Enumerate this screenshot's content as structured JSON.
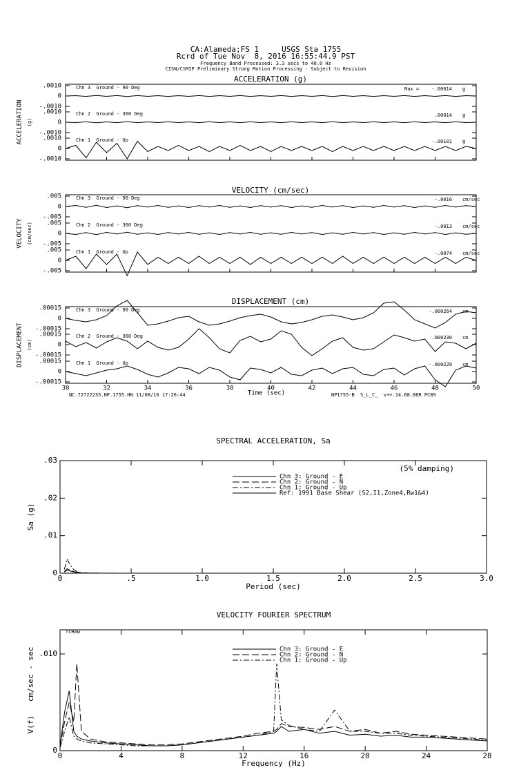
{
  "header": [
    "CA:Alameda;FS 1     USGS Sta 1755",
    "Rcrd of Tue Nov  8, 2016 16:55:44.9 PST",
    "Frequency Band Processed: 3.3 secs to 40.0 Hz",
    "CISN/CSMIP Preliminary Strong Motion Processing - Subject to Revision"
  ],
  "chart_data": [
    {
      "type": "trace",
      "title": "ACCELERATION (g)",
      "ylabel": "ACCELERATION",
      "yunit": "(g)",
      "max_prefix": "Max =",
      "unit": "g",
      "xlim": [
        30,
        50
      ],
      "xticks": [
        30,
        32,
        34,
        36,
        38,
        40,
        42,
        44,
        46,
        48,
        50
      ],
      "ylim": [
        -0.001,
        0.001
      ],
      "yticks": [
        {
          "value": 0.001,
          "label": ".0010"
        },
        0,
        {
          "value": -0.001,
          "label": "-.0010"
        }
      ],
      "x": [
        30,
        30.5,
        31,
        31.5,
        32,
        32.5,
        33,
        33.5,
        34,
        34.5,
        35,
        35.5,
        36,
        36.5,
        37,
        37.5,
        38,
        38.5,
        39,
        39.5,
        40,
        40.5,
        41,
        41.5,
        42,
        42.5,
        43,
        43.5,
        44,
        44.5,
        45,
        45.5,
        46,
        46.5,
        47,
        47.5,
        48,
        48.5,
        49,
        49.5,
        50
      ],
      "channels": [
        {
          "name": "Chn 3  Ground - 90 Deg",
          "peak": "-.00014",
          "values": [
            0,
            3e-05,
            -4e-05,
            5e-05,
            -3e-05,
            4e-05,
            -5e-05,
            4e-05,
            -3e-05,
            3e-05,
            -4e-05,
            3e-05,
            -3e-05,
            4e-05,
            -4e-05,
            3e-05,
            -3e-05,
            4e-05,
            -4e-05,
            3e-05,
            -3e-05,
            4e-05,
            -4e-05,
            3e-05,
            -3e-05,
            4e-05,
            -5e-05,
            4e-05,
            -3e-05,
            3e-05,
            -4e-05,
            3e-05,
            -3e-05,
            4e-05,
            -4e-05,
            3e-05,
            -3e-05,
            4e-05,
            -4e-05,
            3e-05,
            0
          ]
        },
        {
          "name": "Chn 2  Ground - 360 Deg",
          "peak": ".00014",
          "values": [
            0,
            -3e-05,
            4e-05,
            -5e-05,
            3e-05,
            -4e-05,
            5e-05,
            -4e-05,
            3e-05,
            -3e-05,
            4e-05,
            -3e-05,
            3e-05,
            -4e-05,
            4e-05,
            -3e-05,
            3e-05,
            -4e-05,
            4e-05,
            -3e-05,
            3e-05,
            -4e-05,
            4e-05,
            -3e-05,
            3e-05,
            -4e-05,
            5e-05,
            -4e-05,
            3e-05,
            -3e-05,
            4e-05,
            -3e-05,
            3e-05,
            -4e-05,
            4e-05,
            -3e-05,
            3e-05,
            -4e-05,
            4e-05,
            -3e-05,
            0
          ]
        },
        {
          "name": "Chn 1  Ground - Up",
          "peak": "-.00101",
          "values": [
            0,
            0.0003,
            -0.0009,
            0.0006,
            -0.0004,
            0.0005,
            -0.001,
            0.0007,
            -0.0003,
            0.0002,
            -0.0002,
            0.0003,
            -0.0002,
            0.0002,
            -0.0003,
            0.0002,
            -0.0002,
            0.0003,
            -0.0002,
            0.0002,
            -0.0003,
            0.0002,
            -0.0002,
            0.0002,
            -0.0002,
            0.0002,
            -0.0003,
            0.0002,
            -0.0002,
            0.0002,
            -0.0002,
            0.0002,
            -0.0002,
            0.0002,
            -0.0002,
            0.0002,
            -0.0002,
            0.0002,
            -0.0002,
            0.0002,
            0
          ]
        }
      ]
    },
    {
      "type": "trace",
      "title": "VELOCITY (cm/sec)",
      "ylabel": "VELOCITY",
      "yunit": "(cm/sec)",
      "unit": "cm/sec",
      "xlim": [
        30,
        50
      ],
      "xticks": [
        30,
        32,
        34,
        36,
        38,
        40,
        42,
        44,
        46,
        48,
        50
      ],
      "ylim": [
        -0.005,
        0.005
      ],
      "yticks": [
        {
          "value": 0.005,
          "label": ".005"
        },
        0,
        {
          "value": -0.005,
          "label": "-.005"
        }
      ],
      "x": [
        30,
        30.5,
        31,
        31.5,
        32,
        32.5,
        33,
        33.5,
        34,
        34.5,
        35,
        35.5,
        36,
        36.5,
        37,
        37.5,
        38,
        38.5,
        39,
        39.5,
        40,
        40.5,
        41,
        41.5,
        42,
        42.5,
        43,
        43.5,
        44,
        44.5,
        45,
        45.5,
        46,
        46.5,
        47,
        47.5,
        48,
        48.5,
        49,
        49.5,
        50
      ],
      "channels": [
        {
          "name": "Chn 3  Ground - 90 Deg",
          "peak": "-.0016",
          "values": [
            0,
            0.0005,
            -0.0004,
            0.0006,
            -0.0005,
            0.0003,
            -0.0006,
            0.0004,
            -0.0003,
            0.0005,
            -0.0004,
            0.0003,
            -0.0005,
            0.0004,
            -0.0003,
            0.0005,
            -0.0004,
            0.0003,
            -0.0005,
            0.0004,
            -0.0003,
            0.0004,
            -0.0005,
            0.0003,
            -0.0004,
            0.0005,
            -0.0003,
            0.0004,
            -0.0005,
            0.0003,
            -0.0004,
            0.0005,
            -0.0003,
            0.0004,
            -0.0005,
            0.0003,
            -0.0004,
            0.0005,
            -0.0003,
            0.0004,
            0
          ]
        },
        {
          "name": "Chn 2  Ground - 360 Deg",
          "peak": "-.0013",
          "values": [
            0,
            -0.0005,
            0.0004,
            -0.0006,
            0.0005,
            -0.0003,
            0.0006,
            -0.0004,
            0.0003,
            -0.0005,
            0.0004,
            -0.0003,
            0.0005,
            -0.0004,
            0.0003,
            -0.0005,
            0.0004,
            -0.0003,
            0.0005,
            -0.0004,
            0.0003,
            -0.0004,
            0.0005,
            -0.0003,
            0.0004,
            -0.0005,
            0.0003,
            -0.0004,
            0.0005,
            -0.0003,
            0.0004,
            -0.0005,
            0.0003,
            -0.0004,
            0.0005,
            -0.0003,
            0.0004,
            -0.0005,
            0.0003,
            -0.0004,
            0
          ]
        },
        {
          "name": "Chn 1  Ground - Up",
          "peak": "-.0074",
          "values": [
            0,
            0.002,
            -0.004,
            0.003,
            -0.002,
            0.003,
            -0.0074,
            0.004,
            -0.002,
            0.0015,
            -0.0015,
            0.0015,
            -0.0015,
            0.002,
            -0.0015,
            0.0015,
            -0.0015,
            0.0015,
            -0.002,
            0.0015,
            -0.0015,
            0.0015,
            -0.0015,
            0.0015,
            -0.0015,
            0.0015,
            -0.0015,
            0.002,
            -0.0015,
            0.0015,
            -0.0015,
            0.0015,
            -0.0015,
            0.0015,
            -0.0015,
            0.0015,
            -0.0015,
            0.0015,
            -0.0015,
            0.0015,
            0
          ]
        }
      ]
    },
    {
      "type": "trace",
      "title": "DISPLACEMENT (cm)",
      "ylabel": "DISPLACEMENT",
      "yunit": "(cm)",
      "unit": "cm",
      "xlabel": "Time (sec)",
      "footer": [
        "NC.72722235.NP.1755.HN 11/08/16 17:26:44",
        "NP1755-B  S_L_C_  v++.14.68.86R PC89"
      ],
      "xlim": [
        30,
        50
      ],
      "xticks": [
        30,
        32,
        34,
        36,
        38,
        40,
        42,
        44,
        46,
        48,
        50
      ],
      "ylim": [
        -0.00015,
        0.00015
      ],
      "yticks": [
        {
          "value": 0.00015,
          "label": ".00015"
        },
        0,
        {
          "value": -0.00015,
          "label": "-.00015"
        }
      ],
      "x": [
        30,
        30.5,
        31,
        31.5,
        32,
        32.5,
        33,
        33.5,
        34,
        34.5,
        35,
        35.5,
        36,
        36.5,
        37,
        37.5,
        38,
        38.5,
        39,
        39.5,
        40,
        40.5,
        41,
        41.5,
        42,
        42.5,
        43,
        43.5,
        44,
        44.5,
        45,
        45.5,
        46,
        46.5,
        47,
        47.5,
        48,
        48.5,
        49,
        49.5,
        50
      ],
      "channels": [
        {
          "name": "Chn 3  Ground - 90 Deg",
          "peak": "-.000264",
          "values": [
            0,
            -3e-05,
            -5e-05,
            -2e-05,
            4e-05,
            0.00018,
            0.00026,
            8e-05,
            -0.0001,
            -8e-05,
            -4e-05,
            1e-05,
            3e-05,
            -5e-05,
            -0.0001,
            -8e-05,
            -4e-05,
            1e-05,
            4e-05,
            6e-05,
            2e-05,
            -5e-05,
            -8e-05,
            -6e-05,
            -2e-05,
            3e-05,
            5e-05,
            2e-05,
            -2e-05,
            1e-05,
            8e-05,
            0.00022,
            0.00024,
            0.00012,
            -2e-05,
            -8e-05,
            -0.00014,
            -6e-05,
            6e-05,
            0.0001,
            8e-05
          ]
        },
        {
          "name": "Chn 2  Ground - 360 Deg",
          "peak": ".000230",
          "values": [
            5e-05,
            -3e-05,
            3e-05,
            -5e-05,
            4e-05,
            0.0001,
            5e-05,
            -6e-05,
            5e-05,
            -4e-05,
            -8e-05,
            -4e-05,
            8e-05,
            0.00023,
            0.0001,
            -6e-05,
            -0.00012,
            6e-05,
            0.00012,
            4e-05,
            8e-05,
            0.0002,
            0.00015,
            -4e-05,
            -0.00016,
            -6e-05,
            5e-05,
            0.0001,
            -4e-05,
            -8e-05,
            -6e-05,
            4e-05,
            0.00014,
            0.0001,
            5e-05,
            8e-05,
            -0.0001,
            4e-05,
            2e-05,
            -6e-05,
            2e-05
          ]
        },
        {
          "name": "Chn 1  Ground - Up",
          "peak": "-.000229",
          "values": [
            0,
            -3e-05,
            -6e-05,
            -2e-05,
            2e-05,
            4e-05,
            8e-05,
            3e-05,
            -4e-05,
            -8e-05,
            -2e-05,
            6e-05,
            4e-05,
            -3e-05,
            6e-05,
            2e-05,
            -8e-05,
            -0.00012,
            5e-05,
            3e-05,
            -2e-05,
            6e-05,
            -4e-05,
            -6e-05,
            2e-05,
            5e-05,
            -3e-05,
            4e-05,
            6e-05,
            -4e-05,
            -6e-05,
            3e-05,
            5e-05,
            -5e-05,
            4e-05,
            8e-05,
            -0.00012,
            -0.00022,
            2e-05,
            8e-05,
            5e-05
          ]
        }
      ]
    },
    {
      "type": "line",
      "title": "SPECTRAL ACCELERATION, Sa",
      "xlabel": "Period (sec)",
      "ylabel": "Sa (g)",
      "annotation": "(5% damping)",
      "xlim": [
        0,
        3
      ],
      "xticks": [
        0,
        {
          "value": 0.5,
          "label": ".5"
        },
        {
          "value": 1,
          "label": "1.0"
        },
        {
          "value": 1.5,
          "label": "1.5"
        },
        {
          "value": 2,
          "label": "2.0"
        },
        {
          "value": 2.5,
          "label": "2.5"
        },
        {
          "value": 3,
          "label": "3.0"
        }
      ],
      "ylim": [
        0,
        0.03
      ],
      "yticks": [
        0,
        {
          "value": 0.01,
          "label": ".01"
        },
        {
          "value": 0.02,
          "label": ".02"
        },
        {
          "value": 0.03,
          "label": ".03"
        }
      ],
      "x": [
        0.03,
        0.05,
        0.07,
        0.1,
        0.13,
        0.16,
        0.2,
        0.3,
        0.5
      ],
      "series": [
        {
          "name": "Chn 3: Ground - E",
          "color": "#000000",
          "values": [
            0.0003,
            0.0008,
            0.0006,
            0.0003,
            0.0001,
            5e-05,
            3e-05,
            1e-05,
            0
          ]
        },
        {
          "name": "Chn 2: Ground - N",
          "color": "#000000",
          "dash": "10,4",
          "values": [
            0.0004,
            0.0012,
            0.0008,
            0.0004,
            0.0002,
            8e-05,
            4e-05,
            1e-05,
            0
          ]
        },
        {
          "name": "Chn 1: Ground - Up",
          "color": "#000000",
          "dash": "8,3,2,3",
          "values": [
            0.001,
            0.0038,
            0.0022,
            0.0008,
            0.0003,
            0.0001,
            5e-05,
            2e-05,
            0
          ]
        },
        {
          "name": "Ref: 1991 Base Shear (S2,I1,Zone4,Rw1&4)",
          "color": "#000000",
          "values": [
            null,
            null,
            null,
            null,
            null,
            null,
            null,
            null,
            null
          ]
        }
      ]
    },
    {
      "type": "line",
      "title": "VELOCITY FOURIER SPECTRUM",
      "xlabel": "Frequency (Hz)",
      "ylabel": "V(f)   cm/sec - sec",
      "annotation": "fcHaw",
      "xlim": [
        0,
        28
      ],
      "xticks": [
        0,
        4,
        8,
        12,
        16,
        20,
        24,
        28
      ],
      "ylim": [
        0,
        0.0125
      ],
      "yticks": [
        0,
        {
          "value": 0.01,
          "label": ".010"
        }
      ],
      "x": [
        0,
        0.3,
        0.6,
        0.9,
        1.1,
        1.4,
        2,
        3,
        4,
        5,
        6,
        7,
        8,
        9,
        10,
        11,
        12,
        13,
        14,
        14.2,
        14.5,
        15,
        16,
        17,
        18,
        19,
        20,
        21,
        22,
        23,
        24,
        25,
        26,
        27,
        28
      ],
      "series": [
        {
          "name": "Chn 3: Ground - E",
          "color": "#000000",
          "values": [
            0.0005,
            0.004,
            0.0062,
            0.002,
            0.0015,
            0.0012,
            0.001,
            0.0008,
            0.0007,
            0.0006,
            0.0005,
            0.0005,
            0.0006,
            0.0008,
            0.001,
            0.0012,
            0.0014,
            0.0016,
            0.0018,
            0.002,
            0.0025,
            0.002,
            0.0022,
            0.0018,
            0.002,
            0.0016,
            0.0017,
            0.0015,
            0.0016,
            0.0014,
            0.0014,
            0.0013,
            0.0012,
            0.0011,
            0.001
          ]
        },
        {
          "name": "Chn 2: Ground - N",
          "color": "#000000",
          "dash": "10,4",
          "values": [
            0.0004,
            0.003,
            0.005,
            0.003,
            0.009,
            0.002,
            0.0012,
            0.0009,
            0.0008,
            0.0007,
            0.0006,
            0.0006,
            0.0007,
            0.0009,
            0.0011,
            0.0013,
            0.0015,
            0.0018,
            0.002,
            0.0022,
            0.0028,
            0.0025,
            0.0024,
            0.0022,
            0.0025,
            0.002,
            0.0022,
            0.0018,
            0.002,
            0.0017,
            0.0016,
            0.0015,
            0.0014,
            0.0013,
            0.0012
          ]
        },
        {
          "name": "Chn 1: Ground - Up",
          "color": "#000000",
          "dash": "8,3,2,3",
          "values": [
            0.0003,
            0.002,
            0.0035,
            0.0015,
            0.0012,
            0.001,
            0.0008,
            0.0007,
            0.0006,
            0.0005,
            0.0005,
            0.0005,
            0.0006,
            0.0008,
            0.001,
            0.0012,
            0.0014,
            0.0016,
            0.002,
            0.009,
            0.0032,
            0.0026,
            0.0022,
            0.002,
            0.0042,
            0.002,
            0.002,
            0.0018,
            0.0018,
            0.0016,
            0.0015,
            0.0014,
            0.0013,
            0.0012,
            0.0011
          ]
        }
      ]
    }
  ]
}
